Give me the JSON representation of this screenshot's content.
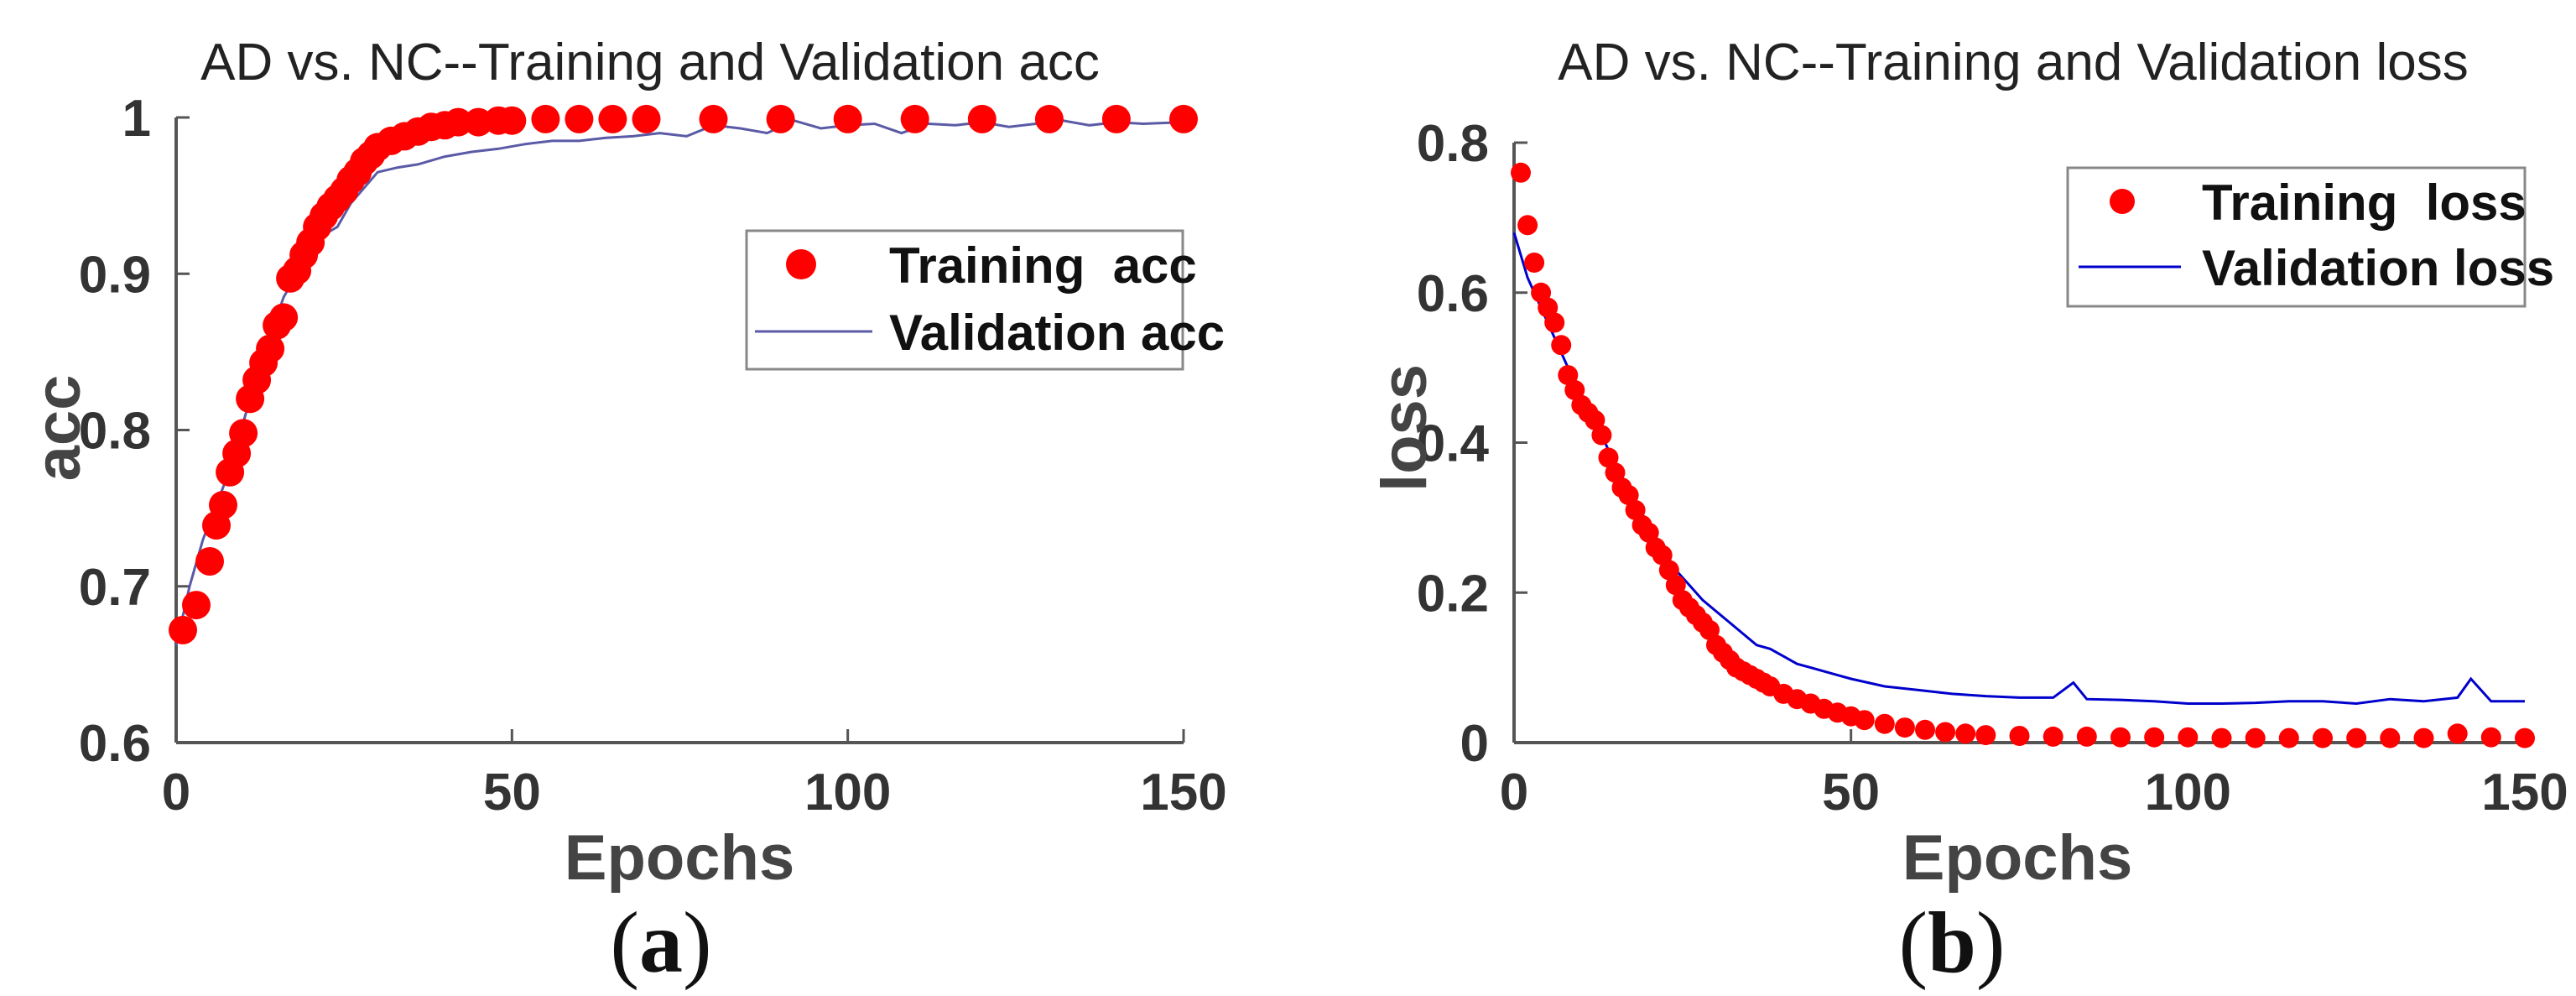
{
  "colors": {
    "training": "#ff0000",
    "validation_a": "#5a5aa6",
    "validation_b": "#0000cc",
    "axis": "#555555"
  },
  "captions": {
    "a": {
      "open": "(",
      "letter": "a",
      "close": ")"
    },
    "b": {
      "open": "(",
      "letter": "b",
      "close": ")"
    }
  },
  "chart_data": [
    {
      "type": "scatter",
      "title": "AD vs. NC--Training and Validation acc",
      "xlabel": "Epochs",
      "ylabel": "acc",
      "xlim": [
        0,
        150
      ],
      "ylim": [
        0.6,
        1.0
      ],
      "xticks": [
        0,
        50,
        100,
        150
      ],
      "yticks": [
        0.6,
        0.7,
        0.8,
        0.9,
        1.0
      ],
      "xtick_labels": [
        "0",
        "50",
        "100",
        "150"
      ],
      "ytick_labels": [
        "0.6",
        "0.7",
        "0.8",
        "0.9",
        "1"
      ],
      "grid": false,
      "legend": "upper-right",
      "series": [
        {
          "name": "Training  acc",
          "style": "markers",
          "x": [
            1,
            3,
            5,
            6,
            7,
            8,
            9,
            10,
            11,
            12,
            13,
            14,
            15,
            16,
            17,
            18,
            19,
            20,
            21,
            22,
            23,
            24,
            25,
            26,
            27,
            28,
            29,
            30,
            32,
            34,
            36,
            38,
            40,
            42,
            45,
            48,
            50,
            55,
            60,
            65,
            70,
            80,
            90,
            100,
            110,
            120,
            130,
            140,
            150
          ],
          "y": [
            0.672,
            0.688,
            0.716,
            0.739,
            0.752,
            0.773,
            0.785,
            0.798,
            0.82,
            0.832,
            0.843,
            0.852,
            0.867,
            0.872,
            0.897,
            0.902,
            0.912,
            0.92,
            0.93,
            0.937,
            0.943,
            0.948,
            0.953,
            0.96,
            0.965,
            0.972,
            0.976,
            0.981,
            0.985,
            0.988,
            0.991,
            0.994,
            0.995,
            0.997,
            0.997,
            0.998,
            0.998,
            0.999,
            0.999,
            0.999,
            0.999,
            0.999,
            0.999,
            0.999,
            0.999,
            0.999,
            0.999,
            0.999,
            0.999
          ]
        },
        {
          "name": "Validation acc",
          "style": "line",
          "x": [
            0,
            2,
            4,
            6,
            8,
            10,
            12,
            14,
            16,
            18,
            20,
            22,
            24,
            26,
            28,
            30,
            33,
            36,
            40,
            44,
            48,
            52,
            56,
            60,
            64,
            68,
            72,
            76,
            80,
            84,
            88,
            92,
            96,
            100,
            104,
            108,
            112,
            116,
            120,
            124,
            128,
            132,
            136,
            140,
            144,
            150
          ],
          "y": [
            0.662,
            0.7,
            0.73,
            0.752,
            0.775,
            0.805,
            0.835,
            0.86,
            0.885,
            0.9,
            0.915,
            0.925,
            0.93,
            0.945,
            0.955,
            0.965,
            0.968,
            0.97,
            0.975,
            0.978,
            0.98,
            0.983,
            0.985,
            0.985,
            0.987,
            0.988,
            0.99,
            0.988,
            0.995,
            0.993,
            0.99,
            0.998,
            0.993,
            0.995,
            0.996,
            0.99,
            0.996,
            0.995,
            0.997,
            0.994,
            0.996,
            0.998,
            0.995,
            0.997,
            0.996,
            0.997
          ]
        }
      ]
    },
    {
      "type": "scatter",
      "title": "AD vs. NC--Training and Validation loss",
      "xlabel": "Epochs",
      "ylabel": "loss",
      "xlim": [
        0,
        150
      ],
      "ylim": [
        0,
        0.8
      ],
      "xticks": [
        0,
        50,
        100,
        150
      ],
      "yticks": [
        0,
        0.2,
        0.4,
        0.6,
        0.8
      ],
      "xtick_labels": [
        "0",
        "50",
        "100",
        "150"
      ],
      "ytick_labels": [
        "0",
        "0.2",
        "0.4",
        "0.6",
        "0.8"
      ],
      "grid": false,
      "legend": "upper-right",
      "series": [
        {
          "name": "Training  loss",
          "style": "markers",
          "x": [
            1,
            2,
            3,
            4,
            5,
            6,
            7,
            8,
            9,
            10,
            11,
            12,
            13,
            14,
            15,
            16,
            17,
            18,
            19,
            20,
            21,
            22,
            23,
            24,
            25,
            26,
            27,
            28,
            29,
            30,
            31,
            32,
            33,
            34,
            35,
            36,
            37,
            38,
            40,
            42,
            44,
            46,
            48,
            50,
            52,
            55,
            58,
            61,
            64,
            67,
            70,
            75,
            80,
            85,
            90,
            95,
            100,
            105,
            110,
            115,
            120,
            125,
            130,
            135,
            140,
            145,
            150
          ],
          "y": [
            0.76,
            0.69,
            0.64,
            0.6,
            0.58,
            0.56,
            0.53,
            0.49,
            0.47,
            0.45,
            0.44,
            0.43,
            0.41,
            0.38,
            0.36,
            0.34,
            0.33,
            0.31,
            0.29,
            0.28,
            0.26,
            0.25,
            0.23,
            0.21,
            0.19,
            0.18,
            0.17,
            0.16,
            0.15,
            0.13,
            0.12,
            0.11,
            0.1,
            0.095,
            0.09,
            0.085,
            0.08,
            0.075,
            0.065,
            0.058,
            0.052,
            0.045,
            0.04,
            0.035,
            0.03,
            0.025,
            0.02,
            0.017,
            0.014,
            0.012,
            0.01,
            0.009,
            0.008,
            0.008,
            0.007,
            0.007,
            0.007,
            0.006,
            0.006,
            0.006,
            0.006,
            0.006,
            0.006,
            0.006,
            0.012,
            0.007,
            0.006
          ]
        },
        {
          "name": "Validation loss",
          "style": "line",
          "x": [
            0,
            2,
            4,
            6,
            8,
            10,
            12,
            14,
            16,
            18,
            20,
            22,
            24,
            26,
            28,
            30,
            32,
            34,
            36,
            38,
            40,
            42,
            44,
            46,
            48,
            50,
            55,
            60,
            65,
            70,
            75,
            80,
            83,
            85,
            90,
            95,
            100,
            105,
            110,
            115,
            120,
            125,
            130,
            135,
            140,
            142,
            145,
            150
          ],
          "y": [
            0.68,
            0.62,
            0.58,
            0.54,
            0.5,
            0.46,
            0.43,
            0.39,
            0.35,
            0.32,
            0.29,
            0.26,
            0.23,
            0.21,
            0.19,
            0.175,
            0.16,
            0.145,
            0.13,
            0.125,
            0.115,
            0.105,
            0.1,
            0.095,
            0.09,
            0.085,
            0.075,
            0.07,
            0.065,
            0.062,
            0.06,
            0.06,
            0.08,
            0.058,
            0.057,
            0.055,
            0.052,
            0.052,
            0.053,
            0.055,
            0.055,
            0.052,
            0.058,
            0.055,
            0.06,
            0.085,
            0.055,
            0.055
          ]
        }
      ]
    }
  ]
}
